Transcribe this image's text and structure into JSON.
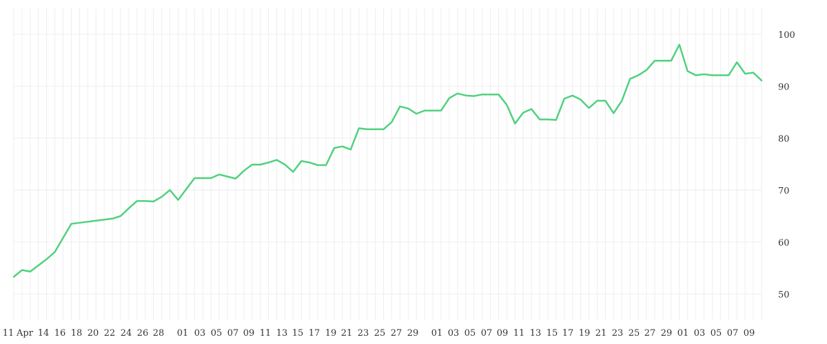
{
  "chart_data": {
    "type": "line",
    "title": "",
    "xlabel": "",
    "ylabel": "",
    "ylim": [
      45,
      105
    ],
    "y_ticks": [
      50,
      60,
      70,
      80,
      90,
      100
    ],
    "y_axis_position": "right",
    "grid": true,
    "line_color": "#4fd17e",
    "x_tick_labels": [
      "11",
      "Apr",
      "14",
      "16",
      "18",
      "20",
      "22",
      "24",
      "26",
      "28",
      "01",
      "03",
      "05",
      "07",
      "09",
      "11",
      "13",
      "15",
      "17",
      "19",
      "21",
      "23",
      "25",
      "27",
      "29",
      "01",
      "03",
      "05",
      "07",
      "09",
      "11",
      "13",
      "15",
      "17",
      "19",
      "21",
      "23",
      "25",
      "27",
      "29",
      "01",
      "03",
      "05",
      "07",
      "09"
    ],
    "series": [
      {
        "values": [
          53.3,
          54.6,
          54.3,
          55.5,
          56.7,
          58.1,
          60.8,
          63.5,
          63.7,
          63.9,
          64.1,
          64.3,
          64.5,
          65.0,
          66.5,
          67.9,
          67.9,
          67.8,
          68.7,
          70.0,
          68.1,
          70.2,
          72.3,
          72.3,
          72.3,
          73.0,
          72.6,
          72.2,
          73.7,
          74.9,
          74.9,
          75.3,
          75.8,
          74.9,
          73.5,
          75.6,
          75.3,
          74.8,
          74.8,
          78.1,
          78.4,
          77.8,
          81.9,
          81.7,
          81.7,
          81.7,
          83.1,
          86.1,
          85.7,
          84.7,
          85.3,
          85.3,
          85.3,
          87.7,
          88.6,
          88.2,
          88.1,
          88.4,
          88.4,
          88.4,
          86.4,
          82.8,
          84.9,
          85.6,
          83.6,
          83.6,
          83.5,
          87.6,
          88.2,
          87.4,
          85.8,
          87.2,
          87.2,
          84.8,
          87.2,
          91.4,
          92.1,
          93.1,
          94.9,
          94.9,
          94.9,
          98.0,
          92.9,
          92.1,
          92.3,
          92.1,
          92.1,
          92.1,
          94.6,
          92.4,
          92.6,
          91.1
        ]
      }
    ]
  }
}
